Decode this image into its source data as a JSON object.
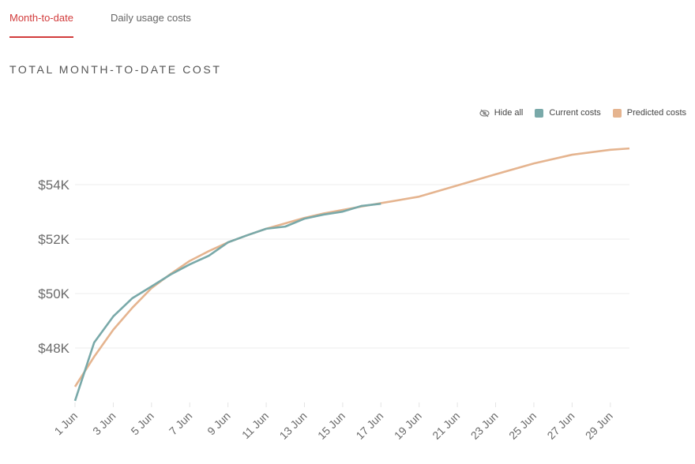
{
  "tabs": [
    {
      "label": "Month-to-date",
      "active": true
    },
    {
      "label": "Daily usage costs",
      "active": false
    }
  ],
  "section_title": "TOTAL MONTH-TO-DATE COST",
  "legend": {
    "hide_all": "Hide all",
    "hide_icon": "eye-slash-icon"
  },
  "colors": {
    "accent": "#d23c3c",
    "current": "#79a9a9",
    "predicted": "#e5b48f",
    "grid": "#eeeeee"
  },
  "chart_data": {
    "type": "line",
    "title": "TOTAL MONTH-TO-DATE COST",
    "xlabel": "",
    "ylabel": "",
    "x_unit": "day of June",
    "ylim": [
      46000,
      56000
    ],
    "yticks": [
      {
        "value": 48000,
        "label": "$48K"
      },
      {
        "value": 50000,
        "label": "$50K"
      },
      {
        "value": 52000,
        "label": "$52K"
      },
      {
        "value": 54000,
        "label": "$54K"
      }
    ],
    "xticks": [
      {
        "value": 1,
        "label": "1 Jun"
      },
      {
        "value": 3,
        "label": "3 Jun"
      },
      {
        "value": 5,
        "label": "5 Jun"
      },
      {
        "value": 7,
        "label": "7 Jun"
      },
      {
        "value": 9,
        "label": "9 Jun"
      },
      {
        "value": 11,
        "label": "11 Jun"
      },
      {
        "value": 13,
        "label": "13 Jun"
      },
      {
        "value": 15,
        "label": "15 Jun"
      },
      {
        "value": 17,
        "label": "17 Jun"
      },
      {
        "value": 19,
        "label": "19 Jun"
      },
      {
        "value": 21,
        "label": "21 Jun"
      },
      {
        "value": 23,
        "label": "23 Jun"
      },
      {
        "value": 25,
        "label": "25 Jun"
      },
      {
        "value": 27,
        "label": "27 Jun"
      },
      {
        "value": 29,
        "label": "29 Jun"
      }
    ],
    "xlim": [
      1,
      30
    ],
    "grid": true,
    "legend_position": "top-right",
    "series": [
      {
        "name": "Current costs",
        "color": "#79a9a9",
        "x": [
          1,
          2,
          3,
          4,
          5,
          6,
          7,
          8,
          9,
          10,
          11,
          12,
          13,
          14,
          15,
          16,
          17
        ],
        "values": [
          46060,
          48200,
          49160,
          49830,
          50260,
          50700,
          51070,
          51390,
          51880,
          52140,
          52380,
          52460,
          52750,
          52900,
          53010,
          53220,
          53300
        ]
      },
      {
        "name": "Predicted costs",
        "color": "#e5b48f",
        "x": [
          1,
          2,
          3,
          4,
          5,
          6,
          7,
          8,
          9,
          10,
          11,
          12,
          13,
          14,
          15,
          16,
          17,
          19,
          21,
          23,
          25,
          27,
          29,
          30
        ],
        "values": [
          46580,
          47680,
          48670,
          49480,
          50200,
          50720,
          51200,
          51560,
          51880,
          52140,
          52380,
          52580,
          52780,
          52940,
          53070,
          53200,
          53320,
          53560,
          53970,
          54380,
          54780,
          55100,
          55280,
          55330
        ]
      }
    ]
  }
}
